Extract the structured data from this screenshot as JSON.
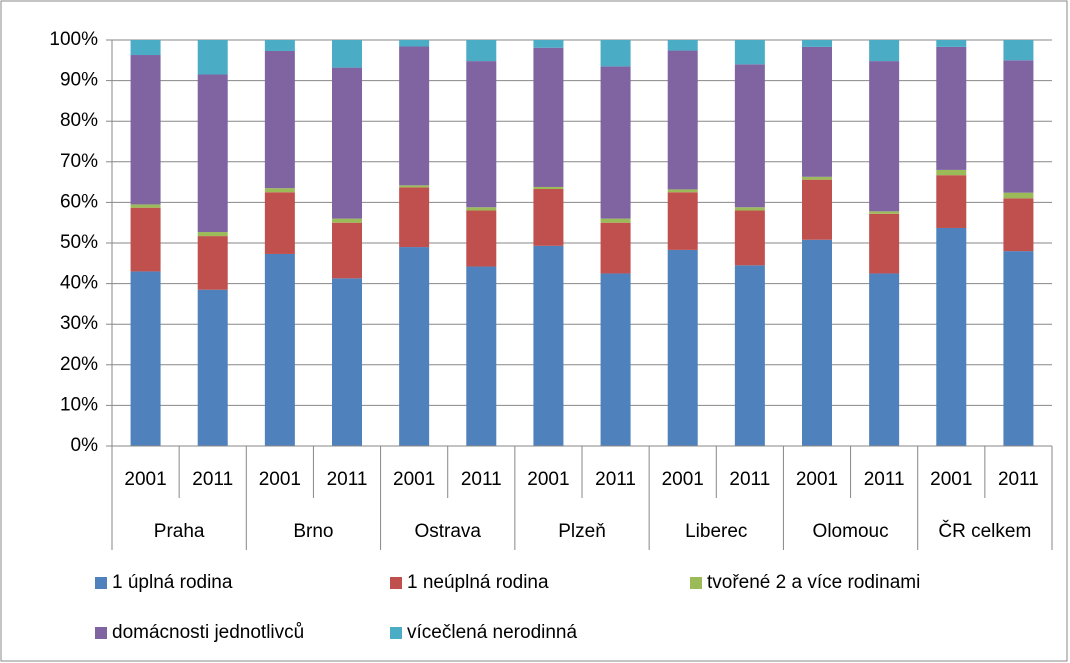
{
  "chart_data": {
    "type": "stacked_bar",
    "categories": [
      "2001",
      "2011",
      "2001",
      "2011",
      "2001",
      "2011",
      "2001",
      "2011",
      "2001",
      "2011",
      "2001",
      "2011",
      "2001",
      "2011"
    ],
    "groups": [
      "Praha",
      "Brno",
      "Ostrava",
      "Plzeň",
      "Liberec",
      "Olomouc",
      "ČR celkem"
    ],
    "series": [
      {
        "name": "1 úplná rodina",
        "color": "#4f81bd",
        "values": [
          43,
          38.5,
          47.3,
          41.3,
          49,
          44.2,
          49.3,
          42.5,
          48.3,
          44.5,
          50.8,
          42.5,
          53.7,
          48
        ]
      },
      {
        "name": "1 neúplná rodina",
        "color": "#c0504d",
        "values": [
          15.7,
          13.2,
          15.2,
          13.7,
          14.7,
          13.8,
          14,
          12.5,
          14.2,
          13.5,
          14.8,
          14.7,
          13,
          13
        ]
      },
      {
        "name": "tvořené 2 a více rodinami",
        "color": "#9bbb59",
        "values": [
          0.8,
          1,
          1,
          1,
          0.5,
          0.8,
          0.5,
          1,
          0.7,
          0.8,
          0.7,
          0.6,
          1.3,
          1.4
        ]
      },
      {
        "name": "domácnosti jednotlivců",
        "color": "#8064a2",
        "values": [
          36.8,
          38.8,
          33.8,
          37.2,
          34.2,
          36,
          34.3,
          37.5,
          34.2,
          35.2,
          32,
          37,
          30.3,
          32.6
        ]
      },
      {
        "name": "vícečlená nerodinná",
        "color": "#4bacc6",
        "values": [
          3.7,
          8.5,
          2.7,
          6.8,
          1.6,
          5.2,
          1.9,
          6.5,
          2.6,
          6,
          1.7,
          5.2,
          1.7,
          5
        ]
      }
    ],
    "ylim": [
      0,
      100
    ],
    "yticks": [
      {
        "value": 0,
        "label": "0%"
      },
      {
        "value": 10,
        "label": "10%"
      },
      {
        "value": 20,
        "label": "20%"
      },
      {
        "value": 30,
        "label": "30%"
      },
      {
        "value": 40,
        "label": "40%"
      },
      {
        "value": 50,
        "label": "50%"
      },
      {
        "value": 60,
        "label": "60%"
      },
      {
        "value": 70,
        "label": "70%"
      },
      {
        "value": 80,
        "label": "80%"
      },
      {
        "value": 90,
        "label": "90%"
      },
      {
        "value": 100,
        "label": "100%"
      }
    ],
    "grid": true,
    "legend": "bottom"
  }
}
